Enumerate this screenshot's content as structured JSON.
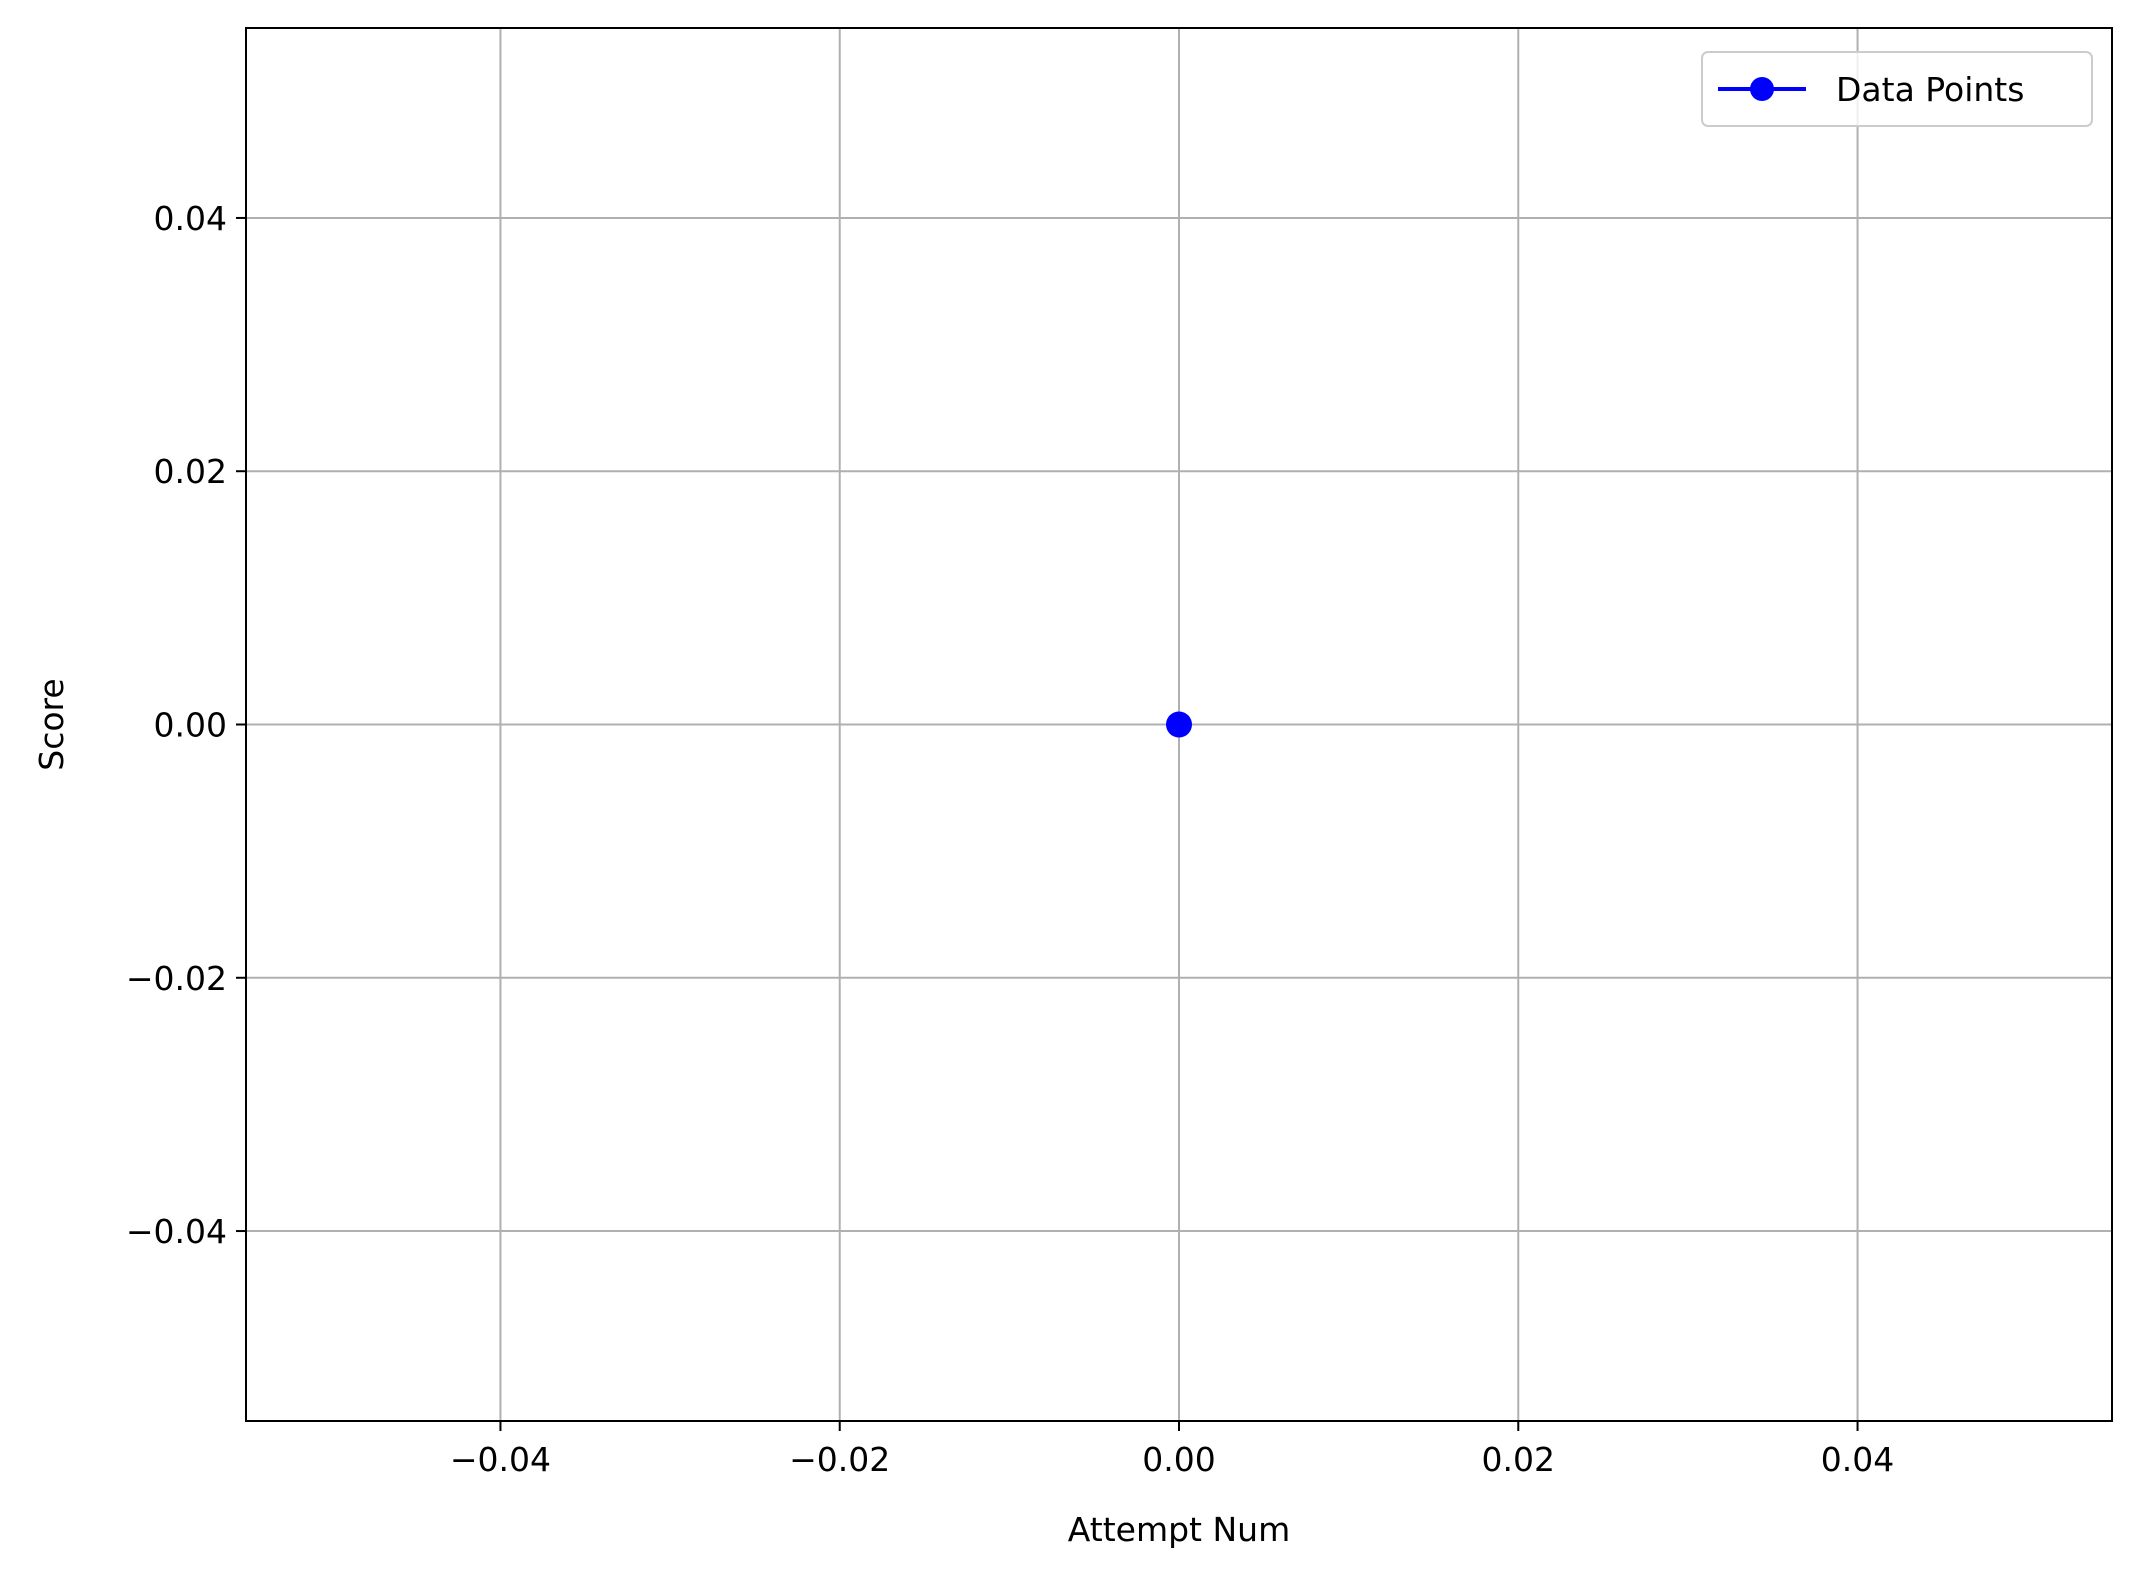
{
  "chart_data": {
    "type": "line",
    "xlabel": "Attempt Num",
    "ylabel": "Score",
    "xlim": [
      -0.055,
      0.055
    ],
    "ylim": [
      -0.055,
      0.055
    ],
    "x_ticks": [
      {
        "value": -0.04,
        "label": "−0.04"
      },
      {
        "value": -0.02,
        "label": "−0.02"
      },
      {
        "value": 0.0,
        "label": "0.00"
      },
      {
        "value": 0.02,
        "label": "0.02"
      },
      {
        "value": 0.04,
        "label": "0.04"
      }
    ],
    "y_ticks": [
      {
        "value": -0.04,
        "label": "−0.04"
      },
      {
        "value": -0.02,
        "label": "−0.02"
      },
      {
        "value": 0.0,
        "label": "0.00"
      },
      {
        "value": 0.02,
        "label": "0.02"
      },
      {
        "value": 0.04,
        "label": "0.04"
      }
    ],
    "grid": true,
    "legend_position": "top-right",
    "series": [
      {
        "name": "Data Points",
        "color": "#0000ff",
        "marker": "circle",
        "x": [
          0
        ],
        "y": [
          0
        ]
      }
    ]
  }
}
